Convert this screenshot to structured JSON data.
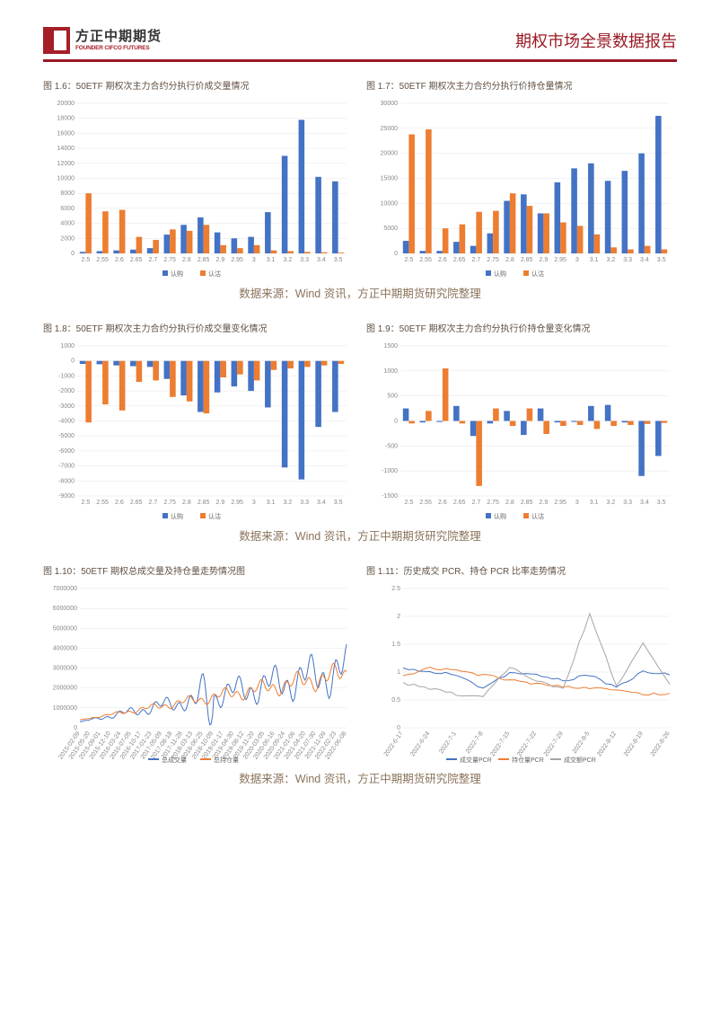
{
  "header": {
    "logo_cn": "方正中期期货",
    "logo_en": "FOUNDER CIFCO FUTURES",
    "title": "期权市场全景数据报告"
  },
  "source_text": "数据来源：Wind 资讯，方正中期期货研究院整理",
  "colors": {
    "blue": "#4472c4",
    "orange": "#ed7d31",
    "gray": "#a5a5a5",
    "text": "#615043",
    "red": "#a51e28"
  },
  "chart_1_6": {
    "title": "图 1.6：50ETF 期权次主力合约分执行价成交量情况",
    "type": "bar",
    "categories": [
      "2.5",
      "2.55",
      "2.6",
      "2.65",
      "2.7",
      "2.75",
      "2.8",
      "2.85",
      "2.9",
      "2.95",
      "3",
      "3.1",
      "3.2",
      "3.3",
      "3.4",
      "3.5"
    ],
    "series": [
      {
        "name": "认购",
        "color": "#4472c4",
        "values": [
          200,
          300,
          400,
          500,
          700,
          2500,
          3800,
          4800,
          2800,
          2000,
          2200,
          5500,
          13000,
          17800,
          10200,
          9600
        ]
      },
      {
        "name": "认沽",
        "color": "#ed7d31",
        "values": [
          8000,
          5600,
          5800,
          2200,
          1800,
          3200,
          3000,
          3800,
          1100,
          700,
          1100,
          400,
          300,
          200,
          150,
          100
        ]
      }
    ],
    "ylim": [
      0,
      20000
    ],
    "ytick_step": 2000,
    "bar_width": 0.35,
    "background_color": "#ffffff"
  },
  "chart_1_7": {
    "title": "图 1.7：50ETF 期权次主力合约分执行价持仓量情况",
    "type": "bar",
    "categories": [
      "2.5",
      "2.55",
      "2.6",
      "2.65",
      "2.7",
      "2.75",
      "2.8",
      "2.85",
      "2.9",
      "2.95",
      "3",
      "3.1",
      "3.2",
      "3.3",
      "3.4",
      "3.5"
    ],
    "series": [
      {
        "name": "认购",
        "color": "#4472c4",
        "values": [
          2500,
          500,
          500,
          2300,
          1500,
          4000,
          10500,
          11800,
          8000,
          14200,
          17000,
          18000,
          14500,
          16500,
          20000,
          27500
        ]
      },
      {
        "name": "认沽",
        "color": "#ed7d31",
        "values": [
          23800,
          24800,
          5000,
          5800,
          8300,
          8500,
          12000,
          9500,
          8000,
          6200,
          5500,
          3800,
          1200,
          800,
          1500,
          800
        ]
      }
    ],
    "ylim": [
      0,
      30000
    ],
    "ytick_step": 5000,
    "bar_width": 0.35,
    "background_color": "#ffffff"
  },
  "chart_1_8": {
    "title": "图 1.8：50ETF 期权次主力合约分执行价成交量变化情况",
    "type": "bar",
    "categories": [
      "2.5",
      "2.55",
      "2.6",
      "2.65",
      "2.7",
      "2.75",
      "2.8",
      "2.85",
      "2.9",
      "2.95",
      "3",
      "3.1",
      "3.2",
      "3.3",
      "3.4",
      "3.5"
    ],
    "series": [
      {
        "name": "认购",
        "color": "#4472c4",
        "values": [
          -200,
          -220,
          -300,
          -350,
          -400,
          -1200,
          -2300,
          -3400,
          -2100,
          -1700,
          -2000,
          -3100,
          -7100,
          -7900,
          -4400,
          -3400
        ]
      },
      {
        "name": "认沽",
        "color": "#ed7d31",
        "values": [
          -4100,
          -2900,
          -3300,
          -1400,
          -1300,
          -2400,
          -2700,
          -3500,
          -1100,
          -900,
          -1300,
          -600,
          -500,
          -400,
          -300,
          -200
        ]
      }
    ],
    "ylim": [
      -9000,
      1000
    ],
    "ytick_step": 1000,
    "bar_width": 0.35,
    "background_color": "#ffffff"
  },
  "chart_1_9": {
    "title": "图 1.9：50ETF 期权次主力合约分执行价持仓量变化情况",
    "type": "bar",
    "categories": [
      "2.5",
      "2.55",
      "2.6",
      "2.65",
      "2.7",
      "2.75",
      "2.8",
      "2.85",
      "2.9",
      "2.95",
      "3",
      "3.1",
      "3.2",
      "3.3",
      "3.4",
      "3.5"
    ],
    "series": [
      {
        "name": "认购",
        "color": "#4472c4",
        "values": [
          250,
          -30,
          -20,
          300,
          -300,
          -50,
          200,
          -280,
          250,
          -30,
          -20,
          300,
          320,
          -30,
          -1100,
          -700
        ]
      },
      {
        "name": "认沽",
        "color": "#ed7d31",
        "values": [
          -50,
          200,
          1050,
          -50,
          -1300,
          250,
          -100,
          250,
          -260,
          -100,
          -80,
          -160,
          -100,
          -80,
          -60,
          -40
        ]
      }
    ],
    "ylim": [
      -1500,
      1500
    ],
    "ytick_step": 500,
    "bar_width": 0.35,
    "background_color": "#ffffff"
  },
  "chart_1_10": {
    "title": "图 1.10：50ETF 期权总成交量及持仓量走势情况图",
    "type": "line",
    "x_labels": [
      "2015-02-09",
      "2015-05-20",
      "2015-09-01",
      "2015-12-10",
      "2016-03-24",
      "2016-07-05",
      "2016-10-17",
      "2017-01-23",
      "2017-05-09",
      "2017-08-18",
      "2017-11-28",
      "2018-03-13",
      "2018-06-25",
      "2018-10-09",
      "2019-01-17",
      "2019-04-30",
      "2019-08-12",
      "2019-11-20",
      "2020-03-05",
      "2020-06-16",
      "2020-09-24",
      "2021-01-06",
      "2021-04-20",
      "2021-07-30",
      "2021-11-09",
      "2022-02-23",
      "2022-06-08"
    ],
    "series": [
      {
        "name": "总成交量",
        "color": "#4472c4"
      },
      {
        "name": "总持仓量",
        "color": "#ed7d31"
      }
    ],
    "ylim": [
      0,
      7000000
    ],
    "ytick_step": 1000000,
    "background_color": "#ffffff"
  },
  "chart_1_11": {
    "title": "图 1.11：历史成交 PCR、持仓 PCR 比率走势情况",
    "type": "line",
    "x_labels": [
      "2022-6-17",
      "2022-6-24",
      "2022-7-1",
      "2022-7-8",
      "2022-7-15",
      "2022-7-22",
      "2022-7-29",
      "2022-8-5",
      "2022-8-12",
      "2022-8-19",
      "2022-8-26"
    ],
    "series": [
      {
        "name": "成交量PCR",
        "color": "#4472c4",
        "values": [
          1.05,
          1.0,
          0.95,
          0.7,
          1.0,
          0.95,
          0.85,
          0.95,
          0.72,
          1.0,
          0.95
        ]
      },
      {
        "name": "持仓量PCR",
        "color": "#ed7d31",
        "values": [
          0.92,
          1.08,
          1.02,
          0.95,
          0.85,
          0.78,
          0.75,
          0.7,
          0.68,
          0.6,
          0.62
        ]
      },
      {
        "name": "成交额PCR",
        "color": "#a5a5a5",
        "values": [
          0.8,
          0.7,
          0.6,
          0.55,
          1.1,
          0.85,
          0.7,
          2.05,
          0.75,
          1.5,
          0.78
        ]
      }
    ],
    "ylim": [
      0,
      2.5
    ],
    "ytick_step": 0.5,
    "background_color": "#ffffff"
  }
}
